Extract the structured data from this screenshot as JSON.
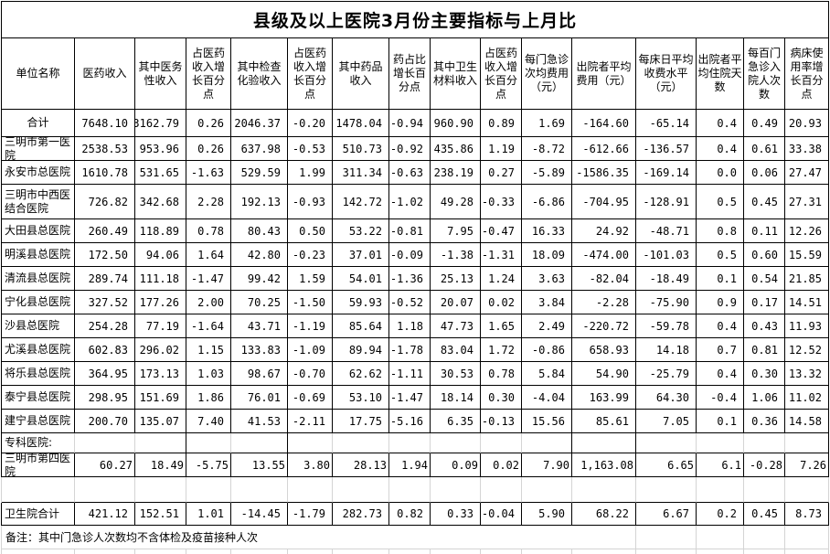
{
  "title": "县级及以上医院3月份主要指标与上月比",
  "columns": [
    "单位名称",
    "医药收入",
    "其中医务性收入",
    "占医药收入增长百分点",
    "其中检查化验收入",
    "占医药收入增长百分点",
    "其中药品收入",
    "药占比增长百分点",
    "其中卫生材料收入",
    "占医药收入增长百分点",
    "每门急诊次均费用（元）",
    "出院者平均费用（元）",
    "每床日平均收费水平（元）",
    "出院者平均住院天数",
    "每百门急诊入院人次数",
    "病床使用率增长百分点"
  ],
  "rows": [
    {
      "kind": "total",
      "label": "合计",
      "values": [
        "7648.10",
        "3162.79",
        "0.26",
        "2046.37",
        "-0.20",
        "1478.04",
        "-0.94",
        "960.90",
        "0.89",
        "1.69",
        "-164.60",
        "-65.14",
        "0.4",
        "0.49",
        "20.93"
      ]
    },
    {
      "kind": "hospital",
      "label": "三明市第一医院",
      "values": [
        "2538.53",
        "953.96",
        "0.26",
        "637.98",
        "-0.53",
        "510.73",
        "-0.92",
        "435.86",
        "1.19",
        "-8.72",
        "-612.66",
        "-136.57",
        "0.4",
        "0.61",
        "33.38"
      ]
    },
    {
      "kind": "hospital",
      "label": "永安市总医院",
      "values": [
        "1610.78",
        "531.65",
        "-1.63",
        "529.59",
        "1.99",
        "311.34",
        "-0.63",
        "238.19",
        "0.27",
        "-5.89",
        "-1586.35",
        "-169.14",
        "0.0",
        "0.06",
        "27.47"
      ]
    },
    {
      "kind": "hospital-tall",
      "label": "三明市中西医结合医院",
      "values": [
        "726.82",
        "342.68",
        "2.28",
        "192.13",
        "-0.93",
        "142.72",
        "-1.02",
        "49.28",
        "-0.33",
        "-6.86",
        "-704.95",
        "-128.91",
        "0.5",
        "0.45",
        "27.31"
      ]
    },
    {
      "kind": "hospital",
      "label": "大田县总医院",
      "values": [
        "260.49",
        "118.89",
        "0.78",
        "80.43",
        "0.50",
        "53.22",
        "-0.81",
        "7.95",
        "-0.47",
        "16.33",
        "24.92",
        "-48.71",
        "0.8",
        "0.11",
        "12.26"
      ]
    },
    {
      "kind": "hospital",
      "label": "明溪县总医院",
      "values": [
        "172.50",
        "94.06",
        "1.64",
        "42.80",
        "-0.23",
        "37.01",
        "-0.09",
        "-1.38",
        "-1.31",
        "18.09",
        "-474.00",
        "-101.03",
        "0.5",
        "0.60",
        "15.59"
      ]
    },
    {
      "kind": "hospital",
      "label": "清流县总医院",
      "values": [
        "289.74",
        "111.18",
        "-1.47",
        "99.42",
        "1.59",
        "54.01",
        "-1.36",
        "25.13",
        "1.24",
        "3.63",
        "-82.04",
        "-18.49",
        "0.1",
        "0.54",
        "21.85"
      ]
    },
    {
      "kind": "hospital",
      "label": "宁化县总医院",
      "values": [
        "327.52",
        "177.26",
        "2.00",
        "70.25",
        "-1.50",
        "59.93",
        "-0.52",
        "20.07",
        "0.02",
        "3.84",
        "-2.28",
        "-75.90",
        "0.9",
        "0.17",
        "14.51"
      ]
    },
    {
      "kind": "hospital",
      "label": "沙县总医院",
      "values": [
        "254.28",
        "77.19",
        "-1.64",
        "43.71",
        "-1.19",
        "85.64",
        "1.18",
        "47.73",
        "1.65",
        "2.49",
        "-220.72",
        "-59.78",
        "0.4",
        "0.43",
        "11.93"
      ]
    },
    {
      "kind": "hospital",
      "label": "尤溪县总医院",
      "values": [
        "602.83",
        "296.02",
        "1.15",
        "133.83",
        "-1.09",
        "89.94",
        "-1.78",
        "83.04",
        "1.72",
        "-0.86",
        "658.93",
        "14.18",
        "0.7",
        "0.81",
        "12.52"
      ]
    },
    {
      "kind": "hospital",
      "label": "将乐县总医院",
      "values": [
        "364.95",
        "173.13",
        "1.03",
        "98.67",
        "-0.70",
        "62.62",
        "-1.11",
        "30.53",
        "0.78",
        "5.84",
        "54.90",
        "-25.79",
        "0.4",
        "0.30",
        "13.32"
      ]
    },
    {
      "kind": "hospital",
      "label": "泰宁县总医院",
      "values": [
        "298.95",
        "151.69",
        "1.86",
        "76.01",
        "-0.69",
        "53.10",
        "-1.47",
        "18.14",
        "0.30",
        "-4.04",
        "163.99",
        "64.30",
        "-0.4",
        "1.06",
        "11.02"
      ]
    },
    {
      "kind": "hospital",
      "label": "建宁县总医院",
      "values": [
        "200.70",
        "135.07",
        "7.40",
        "41.53",
        "-2.11",
        "17.75",
        "-5.16",
        "6.35",
        "-0.13",
        "15.56",
        "85.61",
        "7.05",
        "0.1",
        "0.36",
        "14.58"
      ]
    },
    {
      "kind": "section",
      "label": "专科医院:",
      "values": []
    },
    {
      "kind": "hospital-flush",
      "label": "三明市第四医院",
      "values": [
        "60.27",
        "18.49",
        "-5.75",
        "13.55",
        "3.80",
        "28.13",
        "1.94",
        "0.09",
        "0.02",
        "7.90",
        "1,163.08",
        "6.65",
        "6.1",
        "-0.28",
        "7.26"
      ]
    },
    {
      "kind": "blank",
      "label": "",
      "values": []
    },
    {
      "kind": "total2",
      "label": "卫生院合计",
      "values": [
        "421.12",
        "152.51",
        "1.01",
        "-14.45",
        "-1.79",
        "282.73",
        "0.82",
        "0.33",
        "-0.04",
        "5.90",
        "68.22",
        "6.67",
        "0.2",
        "0.45",
        "8.73"
      ]
    },
    {
      "kind": "note",
      "label": "备注：其中门急诊人次数均不含体检及疫苗接种人次",
      "values": []
    }
  ],
  "colors": {
    "text": "#000000",
    "table_border": "#000000",
    "gridline": "#d4d4d4",
    "background": "#ffffff"
  }
}
